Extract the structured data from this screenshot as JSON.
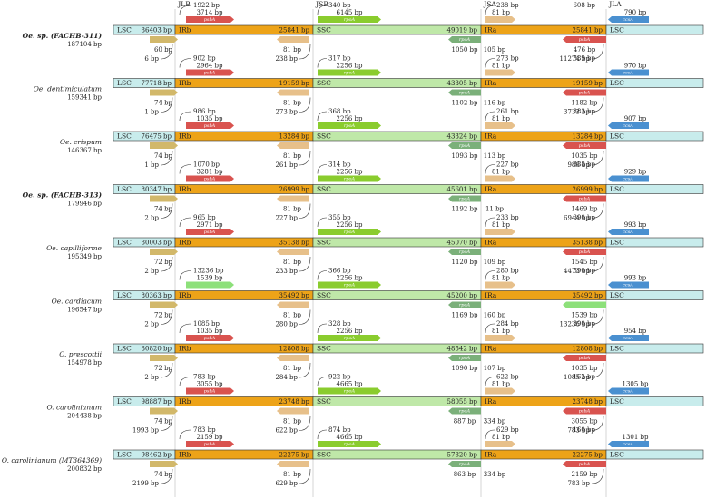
{
  "junctions": [
    "JLB",
    "JSB",
    "JSA",
    "JLA"
  ],
  "regions": [
    "LSC",
    "IRb",
    "SSC",
    "IRa",
    "LSC"
  ],
  "genes": [
    "psbA",
    "rpoA",
    "ccsA"
  ],
  "rows": [
    {
      "name": "Oe. sp. (FACHB-311)",
      "bold": true,
      "size": "187104 bp",
      "lengths": [
        "86403 bp",
        "25841 bp",
        "49019 bp",
        "25841 bp"
      ],
      "top": [
        "1922 bp",
        "3714 bp",
        "340 bp",
        "6145 bp",
        "238 bp",
        "81 bp",
        "608 bp",
        "790 bp"
      ],
      "bottom": [
        "60 bp",
        "6 bp",
        "81 bp",
        "238 bp",
        "1050 bp",
        "105 bp",
        "476 bp",
        "11274 bp"
      ]
    },
    {
      "name": "Oe. dentimiculatum",
      "bold": false,
      "size": "159341 bp",
      "lengths": [
        "77718 bp",
        "19159 bp",
        "43305 bp",
        "19159 bp"
      ],
      "top": [
        "902 bp",
        "2964 bp",
        "317 bp",
        "2256 bp",
        "273 bp",
        "81 bp",
        "389 bp",
        "970 bp"
      ],
      "bottom": [
        "74 bp",
        "1 bp",
        "81 bp",
        "273 bp",
        "1102 bp",
        "116 bp",
        "1182 bp",
        "3733 bp"
      ]
    },
    {
      "name": "Oe. crispum",
      "bold": false,
      "size": "146367 bp",
      "lengths": [
        "76475 bp",
        "13284 bp",
        "43324 bp",
        "13284 bp"
      ],
      "top": [
        "986 bp",
        "1035 bp",
        "368 bp",
        "2256 bp",
        "261 bp",
        "81 bp",
        "383 bp",
        "907 bp"
      ],
      "bottom": [
        "74 bp",
        "1 bp",
        "81 bp",
        "261 bp",
        "1093 bp",
        "113 bp",
        "1035 bp",
        "986 bp"
      ]
    },
    {
      "name": "Oe. sp. (FACHB-313)",
      "bold": true,
      "size": "179946 bp",
      "lengths": [
        "80347 bp",
        "26999 bp",
        "45601 bp",
        "26999 bp"
      ],
      "top": [
        "1070 bp",
        "3281 bp",
        "314 bp",
        "2256 bp",
        "227 bp",
        "81 bp",
        "388 bp",
        "929 bp"
      ],
      "bottom": [
        "74 bp",
        "2 bp",
        "81 bp",
        "227 bp",
        "1192 bp",
        "11 bp",
        "1469 bp",
        "6944 bp"
      ]
    },
    {
      "name": "Oe. capilliforme",
      "bold": false,
      "size": "195349 bp",
      "lengths": [
        "80003 bp",
        "35138 bp",
        "45070 bp",
        "35138 bp"
      ],
      "top": [
        "965 bp",
        "2971 bp",
        "355 bp",
        "2256 bp",
        "233 bp",
        "81 bp",
        "390 bp",
        "993 bp"
      ],
      "bottom": [
        "72 bp",
        "2 bp",
        "81 bp",
        "233 bp",
        "1120 bp",
        "109 bp",
        "1545 bp",
        "4473 bp"
      ]
    },
    {
      "name": "Oe. cardiacum",
      "bold": false,
      "size": "196547 bp",
      "lengths": [
        "80363 bp",
        "35492 bp",
        "45200 bp",
        "35492 bp"
      ],
      "top": [
        "13236 bp",
        "1539 bp",
        "366 bp",
        "2256 bp",
        "280 bp",
        "81 bp",
        "390 bp",
        "993 bp"
      ],
      "bottom": [
        "72 bp",
        "2 bp",
        "81 bp",
        "280 bp",
        "1169 bp",
        "160 bp",
        "1539 bp",
        "13236 bp"
      ]
    },
    {
      "name": "O. prescottii",
      "bold": false,
      "size": "154978 bp",
      "lengths": [
        "80820 bp",
        "12808 bp",
        "48542 bp",
        "12808 bp"
      ],
      "top": [
        "1085 bp",
        "1035 bp",
        "328 bp",
        "2256 bp",
        "284 bp",
        "81 bp",
        "390 bp",
        "954 bp"
      ],
      "bottom": [
        "72 bp",
        "2 bp",
        "81 bp",
        "284 bp",
        "1090 bp",
        "107 bp",
        "1035 bp",
        "1085 bp"
      ]
    },
    {
      "name": "O. carolinianum",
      "bold": false,
      "size": "204438 bp",
      "lengths": [
        "98887 bp",
        "23748 bp",
        "58055 bp",
        "23748 bp"
      ],
      "top": [
        "783 bp",
        "3055 bp",
        "922 bp",
        "4665 bp",
        "622 bp",
        "81 bp",
        "162 bp",
        "1305 bp"
      ],
      "bottom": [
        "74 bp",
        "1993 bp",
        "81 bp",
        "622 bp",
        "887 bp",
        "334 bp",
        "3055 bp",
        "783 bp"
      ]
    },
    {
      "name": "O. carolinianum (MT364369)",
      "bold": false,
      "size": "200832 bp",
      "lengths": [
        "98462 bp",
        "22275 bp",
        "57820 bp",
        "22275 bp"
      ],
      "top": [
        "783 bp",
        "2159 bp",
        "874 bp",
        "4665 bp",
        "629 bp",
        "81 bp",
        "160 bp",
        "1301 bp"
      ],
      "bottom": [
        "74 bp",
        "2199 bp",
        "81 bp",
        "629 bp",
        "863 bp",
        "334 bp",
        "2159 bp",
        "783 bp"
      ]
    }
  ]
}
